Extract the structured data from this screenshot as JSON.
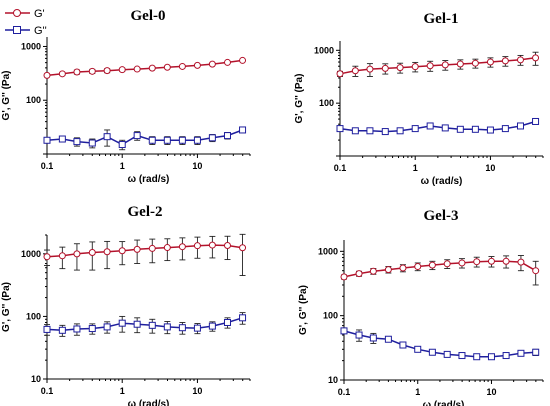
{
  "colors": {
    "gp": "#b3122b",
    "gpp": "#1f1f9e",
    "error": "#222222"
  },
  "legend": {
    "g_prime": "G'",
    "g_double_prime": "G''"
  },
  "chart_data": [
    {
      "type": "line",
      "title": "Gel-0",
      "xlabel": "ω (rad/s)",
      "ylabel": "G', G'' (Pa)",
      "xscale": "log",
      "yscale": "log",
      "xlim": [
        0.1,
        50
      ],
      "ylim": [
        10,
        1500
      ],
      "xticks": [
        {
          "v": 0.1,
          "label": "0.1"
        },
        {
          "v": 1,
          "label": "1"
        },
        {
          "v": 10,
          "label": "10"
        }
      ],
      "yticks": [
        {
          "v": 100,
          "label": "100"
        },
        {
          "v": 1000,
          "label": "1000"
        }
      ],
      "legend": "top-left",
      "x": [
        0.1,
        0.16,
        0.25,
        0.4,
        0.63,
        1.0,
        1.58,
        2.51,
        3.98,
        6.31,
        10,
        15.8,
        25.1,
        39.8
      ],
      "series": [
        {
          "name": "G'",
          "marker": "circle",
          "values": [
            290,
            310,
            335,
            345,
            355,
            370,
            380,
            395,
            410,
            425,
            445,
            470,
            505,
            550
          ],
          "err": [
            15,
            20,
            30,
            30,
            30,
            25,
            20,
            20,
            15,
            15,
            15,
            15,
            15,
            20
          ]
        },
        {
          "name": "G''",
          "marker": "square",
          "values": [
            18,
            19,
            17,
            16,
            21,
            15,
            22,
            18,
            18,
            18,
            18,
            20,
            22,
            28
          ],
          "err": [
            1,
            2,
            3,
            3,
            7,
            3,
            4,
            3,
            3,
            3,
            3,
            3,
            3,
            3
          ]
        }
      ]
    },
    {
      "type": "line",
      "title": "Gel-1",
      "xlabel": "ω (rad/s)",
      "ylabel": "G', G'' (Pa)",
      "xscale": "log",
      "yscale": "log",
      "xlim": [
        0.1,
        50
      ],
      "ylim": [
        10,
        1500
      ],
      "xticks": [
        {
          "v": 0.1,
          "label": "0.1"
        },
        {
          "v": 1,
          "label": "1"
        },
        {
          "v": 10,
          "label": "10"
        }
      ],
      "yticks": [
        {
          "v": 100,
          "label": "100"
        },
        {
          "v": 1000,
          "label": "1000"
        }
      ],
      "x": [
        0.1,
        0.16,
        0.25,
        0.4,
        0.63,
        1.0,
        1.58,
        2.51,
        3.98,
        6.31,
        10,
        15.8,
        25.1,
        39.8
      ],
      "series": [
        {
          "name": "G'",
          "marker": "circle",
          "values": [
            360,
            410,
            440,
            455,
            470,
            490,
            510,
            530,
            550,
            570,
            600,
            630,
            660,
            720
          ],
          "err": [
            40,
            90,
            120,
            100,
            100,
            100,
            110,
            110,
            110,
            110,
            120,
            130,
            140,
            200
          ]
        },
        {
          "name": "G''",
          "marker": "square",
          "values": [
            33,
            30,
            30,
            29,
            30,
            33,
            37,
            34,
            32,
            32,
            31,
            33,
            37,
            45
          ],
          "err": [
            2,
            2,
            2,
            2,
            2,
            2,
            3,
            2,
            2,
            2,
            2,
            2,
            2,
            3
          ]
        }
      ]
    },
    {
      "type": "line",
      "title": "Gel-2",
      "xlabel": "ω (rad/s)",
      "ylabel": "G', G'' (Pa)",
      "xscale": "log",
      "yscale": "log",
      "xlim": [
        0.1,
        50
      ],
      "ylim": [
        10,
        2000
      ],
      "xticks": [
        {
          "v": 0.1,
          "label": "0.1"
        },
        {
          "v": 1,
          "label": "1"
        },
        {
          "v": 10,
          "label": "10"
        }
      ],
      "yticks": [
        {
          "v": 10,
          "label": "10"
        },
        {
          "v": 100,
          "label": "100"
        },
        {
          "v": 1000,
          "label": "1000"
        }
      ],
      "x": [
        0.1,
        0.16,
        0.25,
        0.4,
        0.63,
        1.0,
        1.58,
        2.51,
        3.98,
        6.31,
        10,
        15.8,
        25.1,
        39.8
      ],
      "series": [
        {
          "name": "G'",
          "marker": "circle",
          "values": [
            900,
            930,
            1000,
            1050,
            1080,
            1120,
            1180,
            1220,
            1260,
            1300,
            1350,
            1380,
            1360,
            1250
          ],
          "err": [
            250,
            350,
            450,
            500,
            500,
            450,
            480,
            500,
            480,
            500,
            500,
            520,
            550,
            800
          ]
        },
        {
          "name": "G''",
          "marker": "square",
          "values": [
            62,
            60,
            63,
            64,
            68,
            78,
            75,
            72,
            68,
            66,
            65,
            70,
            80,
            95
          ],
          "err": [
            12,
            12,
            13,
            12,
            14,
            22,
            20,
            18,
            15,
            14,
            12,
            12,
            15,
            20
          ]
        }
      ]
    },
    {
      "type": "line",
      "title": "Gel-3",
      "xlabel": "ω (rad/s)",
      "ylabel": "G', G'' (Pa)",
      "xscale": "log",
      "yscale": "log",
      "xlim": [
        0.1,
        50
      ],
      "ylim": [
        10,
        1500
      ],
      "xticks": [
        {
          "v": 0.1,
          "label": "0.1"
        },
        {
          "v": 1,
          "label": "1"
        },
        {
          "v": 10,
          "label": "10"
        }
      ],
      "yticks": [
        {
          "v": 10,
          "label": "10"
        },
        {
          "v": 100,
          "label": "100"
        },
        {
          "v": 1000,
          "label": "1000"
        }
      ],
      "x": [
        0.1,
        0.16,
        0.25,
        0.4,
        0.63,
        1.0,
        1.58,
        2.51,
        3.98,
        6.31,
        10,
        15.8,
        25.1,
        39.8
      ],
      "series": [
        {
          "name": "G'",
          "marker": "circle",
          "values": [
            400,
            450,
            490,
            520,
            550,
            580,
            610,
            640,
            660,
            690,
            700,
            700,
            680,
            500
          ],
          "err": [
            30,
            40,
            50,
            60,
            70,
            80,
            90,
            100,
            110,
            120,
            130,
            150,
            180,
            200
          ]
        },
        {
          "name": "G''",
          "marker": "square",
          "values": [
            58,
            50,
            45,
            43,
            35,
            30,
            27,
            25,
            24,
            23,
            23,
            24,
            26,
            27
          ],
          "err": [
            5,
            10,
            8,
            4,
            3,
            2,
            2,
            2,
            2,
            1,
            1,
            1,
            2,
            3
          ]
        }
      ]
    }
  ]
}
